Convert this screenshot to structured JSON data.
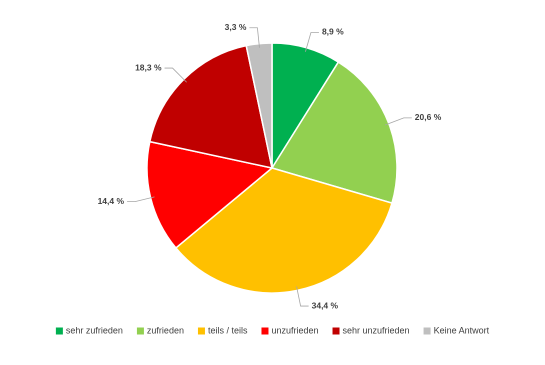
{
  "chart_data": {
    "type": "pie",
    "categories": [
      "sehr zufrieden",
      "zufrieden",
      "teils / teils",
      "unzufrieden",
      "sehr unzufrieden",
      "Keine Antwort"
    ],
    "values": [
      8.9,
      20.6,
      34.4,
      14.4,
      18.3,
      3.3
    ],
    "value_labels": [
      "8,9 %",
      "20,6 %",
      "34,4 %",
      "14,4 %",
      "18,3 %",
      "3,3 %"
    ],
    "colors": [
      "#00b050",
      "#92d050",
      "#ffc000",
      "#ff0000",
      "#c00000",
      "#bfbfbf"
    ],
    "legend": "bottom"
  }
}
